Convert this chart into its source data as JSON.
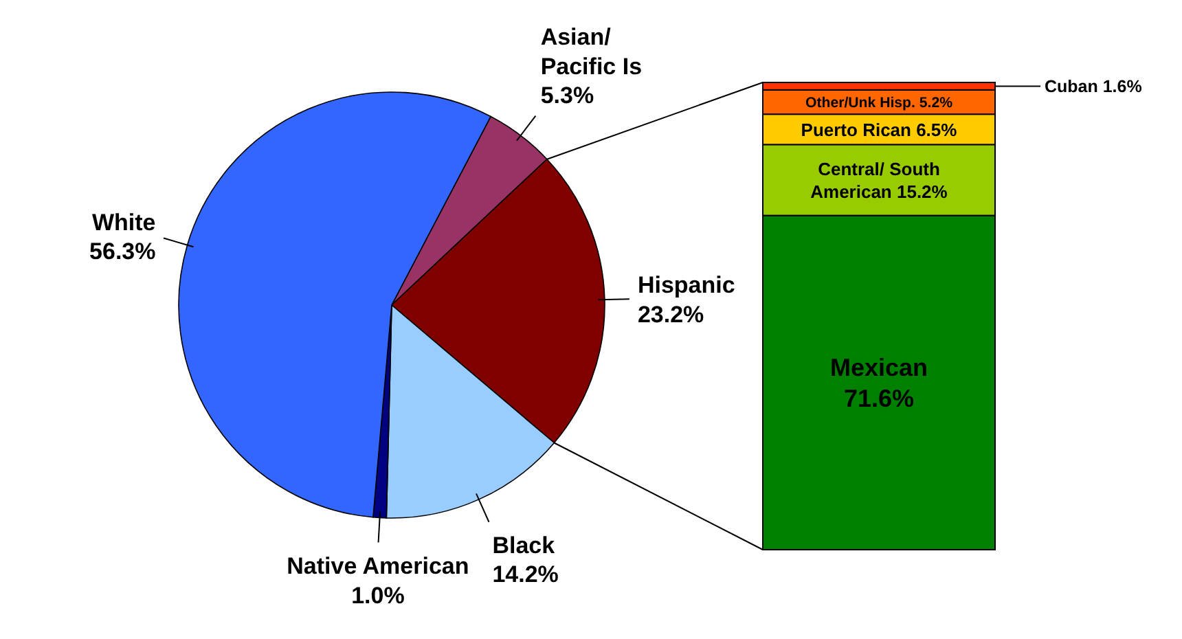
{
  "chart_data": [
    {
      "type": "pie",
      "categories": [
        "Asian/ Pacific Is",
        "Hispanic",
        "Black",
        "Native American",
        "White"
      ],
      "values": [
        5.3,
        23.2,
        14.2,
        1.0,
        56.3
      ],
      "value_labels": [
        "5.3%",
        "23.2%",
        "14.2%",
        "1.0%",
        "56.3%"
      ],
      "colors": [
        "#993366",
        "#800000",
        "#99ccff",
        "#000080",
        "#3366ff"
      ]
    },
    {
      "type": "bar",
      "stacked": true,
      "categories": [
        null
      ],
      "series": [
        {
          "name": "Mexican",
          "color": "#008000",
          "values": [
            71.6
          ],
          "value_labels": [
            "71.6%"
          ]
        },
        {
          "name": "Central/ South American",
          "color": "#99cc00",
          "values": [
            15.2
          ],
          "value_labels": [
            "15.2%"
          ]
        },
        {
          "name": "Puerto Rican",
          "color": "#ffcc00",
          "values": [
            6.5
          ],
          "value_labels": [
            "6.5%"
          ]
        },
        {
          "name": "Other/Unk Hisp.",
          "color": "#ff6600",
          "values": [
            5.2
          ],
          "value_labels": [
            "5.2%"
          ]
        },
        {
          "name": "Cuban",
          "color": "#ff3300",
          "values": [
            1.6
          ],
          "value_labels": [
            "1.6%"
          ]
        }
      ]
    }
  ]
}
